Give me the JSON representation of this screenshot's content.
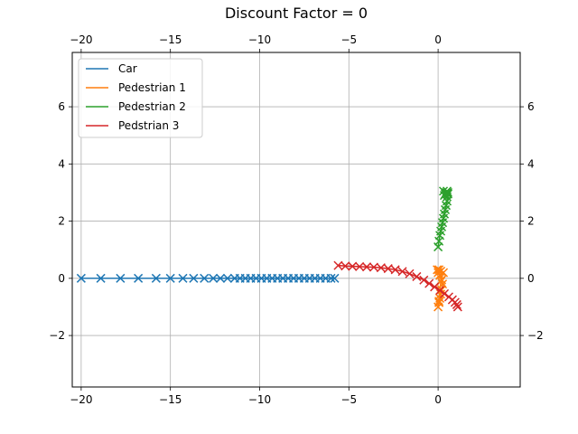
{
  "chart_data": {
    "type": "scatter",
    "title": "Discount Factor = 0",
    "xlabel": "",
    "ylabel": "",
    "xlim": [
      -20.5,
      4.6
    ],
    "ylim": [
      -3.8,
      7.9
    ],
    "xticks": [
      -20,
      -15,
      -10,
      -5,
      0
    ],
    "yticks": [
      -2,
      0,
      2,
      4,
      6
    ],
    "grid": true,
    "mirror_ticks": true,
    "marker": "x",
    "legend_position": "upper-left",
    "series": [
      {
        "name": "Car",
        "color": "#1f77b4",
        "x": [
          -20.0,
          -18.9,
          -17.8,
          -16.8,
          -15.8,
          -15.0,
          -14.3,
          -13.7,
          -13.1,
          -12.6,
          -12.2,
          -11.8,
          -11.4,
          -11.1,
          -10.8,
          -10.5,
          -10.2,
          -9.9,
          -9.6,
          -9.3,
          -9.0,
          -8.7,
          -8.4,
          -8.1,
          -7.8,
          -7.5,
          -7.2,
          -6.9,
          -6.6,
          -6.3,
          -6.0,
          -5.8
        ],
        "y": [
          0,
          0,
          0,
          0,
          0,
          0,
          0,
          0,
          0,
          0,
          0,
          0,
          0,
          0,
          0,
          0,
          0,
          0,
          0,
          0,
          0,
          0,
          0,
          0,
          0,
          0,
          0,
          0,
          0,
          0,
          0,
          0
        ]
      },
      {
        "name": "Pedestrian 1",
        "color": "#ff7f0e",
        "x": [
          0.0,
          0.05,
          0.1,
          0.15,
          0.2,
          0.25,
          0.2,
          0.1,
          0.0,
          -0.05,
          0.05,
          0.15,
          0.3,
          0.15,
          0.05
        ],
        "y": [
          -1.0,
          -0.85,
          -0.7,
          -0.55,
          -0.4,
          -0.2,
          -0.05,
          0.1,
          0.2,
          0.3,
          0.3,
          0.25,
          0.2,
          -0.1,
          -0.8
        ]
      },
      {
        "name": "Pedstrian 2",
        "color": "#2ca02c",
        "x": [
          0.0,
          0.05,
          0.1,
          0.15,
          0.2,
          0.25,
          0.3,
          0.35,
          0.4,
          0.45,
          0.5,
          0.5,
          0.55,
          0.55,
          0.5,
          0.45,
          0.4,
          0.35,
          0.3
        ],
        "y": [
          1.1,
          1.3,
          1.5,
          1.65,
          1.8,
          1.95,
          2.1,
          2.25,
          2.4,
          2.55,
          2.7,
          2.85,
          2.95,
          3.0,
          3.05,
          3.0,
          2.95,
          2.9,
          3.05
        ]
      },
      {
        "name": "Pedstrian 3",
        "color": "#d62728",
        "x": [
          -5.6,
          -5.2,
          -4.8,
          -4.4,
          -4.0,
          -3.6,
          -3.2,
          -2.8,
          -2.4,
          -2.0,
          -1.6,
          -1.2,
          -0.8,
          -0.5,
          -0.2,
          0.1,
          0.35,
          0.6,
          0.8,
          0.95,
          1.05,
          1.1
        ],
        "y": [
          0.45,
          0.43,
          0.42,
          0.41,
          0.4,
          0.39,
          0.37,
          0.34,
          0.3,
          0.24,
          0.16,
          0.06,
          -0.06,
          -0.18,
          -0.3,
          -0.42,
          -0.54,
          -0.65,
          -0.75,
          -0.84,
          -0.92,
          -1.0
        ]
      }
    ],
    "legend": [
      {
        "label": "Car",
        "color": "#1f77b4"
      },
      {
        "label": "Pedestrian 1",
        "color": "#ff7f0e"
      },
      {
        "label": "Pedestrian 2",
        "color": "#2ca02c"
      },
      {
        "label": "Pedstrian 3",
        "color": "#d62728"
      }
    ]
  }
}
